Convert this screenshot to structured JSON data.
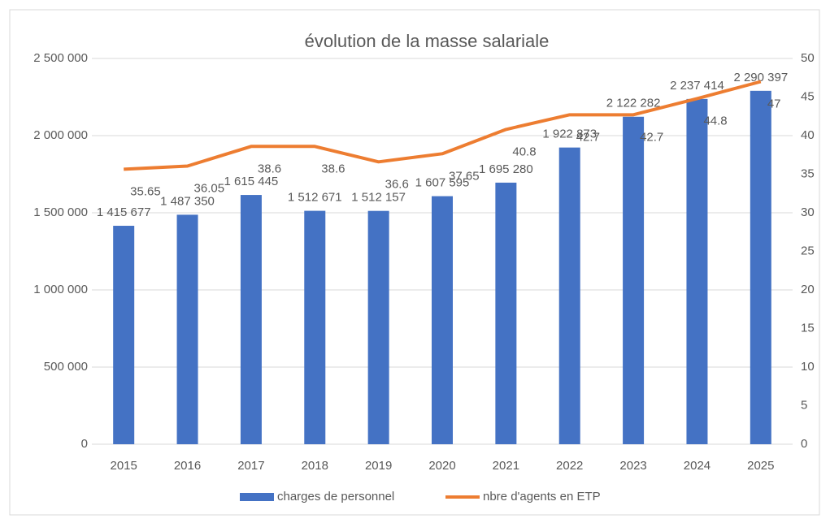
{
  "chart_data": {
    "type": "bar_line",
    "title": "évolution de la masse salariale",
    "categories": [
      "2015",
      "2016",
      "2017",
      "2018",
      "2019",
      "2020",
      "2021",
      "2022",
      "2023",
      "2024",
      "2025"
    ],
    "series": [
      {
        "name": "charges de personnel",
        "type": "bar",
        "color": "#4472c4",
        "values": [
          1415677,
          1487350,
          1615445,
          1512671,
          1512157,
          1607595,
          1695280,
          1922873,
          2122282,
          2237414,
          2290397
        ],
        "value_labels": [
          "1 415 677",
          "1 487 350",
          "1 615 445",
          "1 512 671",
          "1 512 157",
          "1 607 595",
          "1 695 280",
          "1 922 873",
          "2 122 282",
          "2 237 414",
          "2 290 397"
        ]
      },
      {
        "name": "nbre d'agents en ETP",
        "type": "line",
        "axis": "y2",
        "color": "#ed7d31",
        "values": [
          35.65,
          36.05,
          38.6,
          38.6,
          36.6,
          37.65,
          40.8,
          42.7,
          42.7,
          44.8,
          47
        ]
      }
    ],
    "ylim": [
      0,
      2500000
    ],
    "yticks": [
      0,
      {
        "value": 500000,
        "label": "500 000"
      },
      {
        "value": 1000000,
        "label": "1 000 000"
      },
      {
        "value": 1500000,
        "label": "1 500 000"
      },
      {
        "value": 2000000,
        "label": "2 000 000"
      },
      {
        "value": 2500000,
        "label": "2 500 000"
      }
    ],
    "y2lim": [
      0,
      50
    ],
    "y2ticks": [
      0,
      5,
      10,
      15,
      20,
      25,
      30,
      35,
      40,
      45,
      50
    ],
    "grid": true,
    "legend": "bottom"
  }
}
